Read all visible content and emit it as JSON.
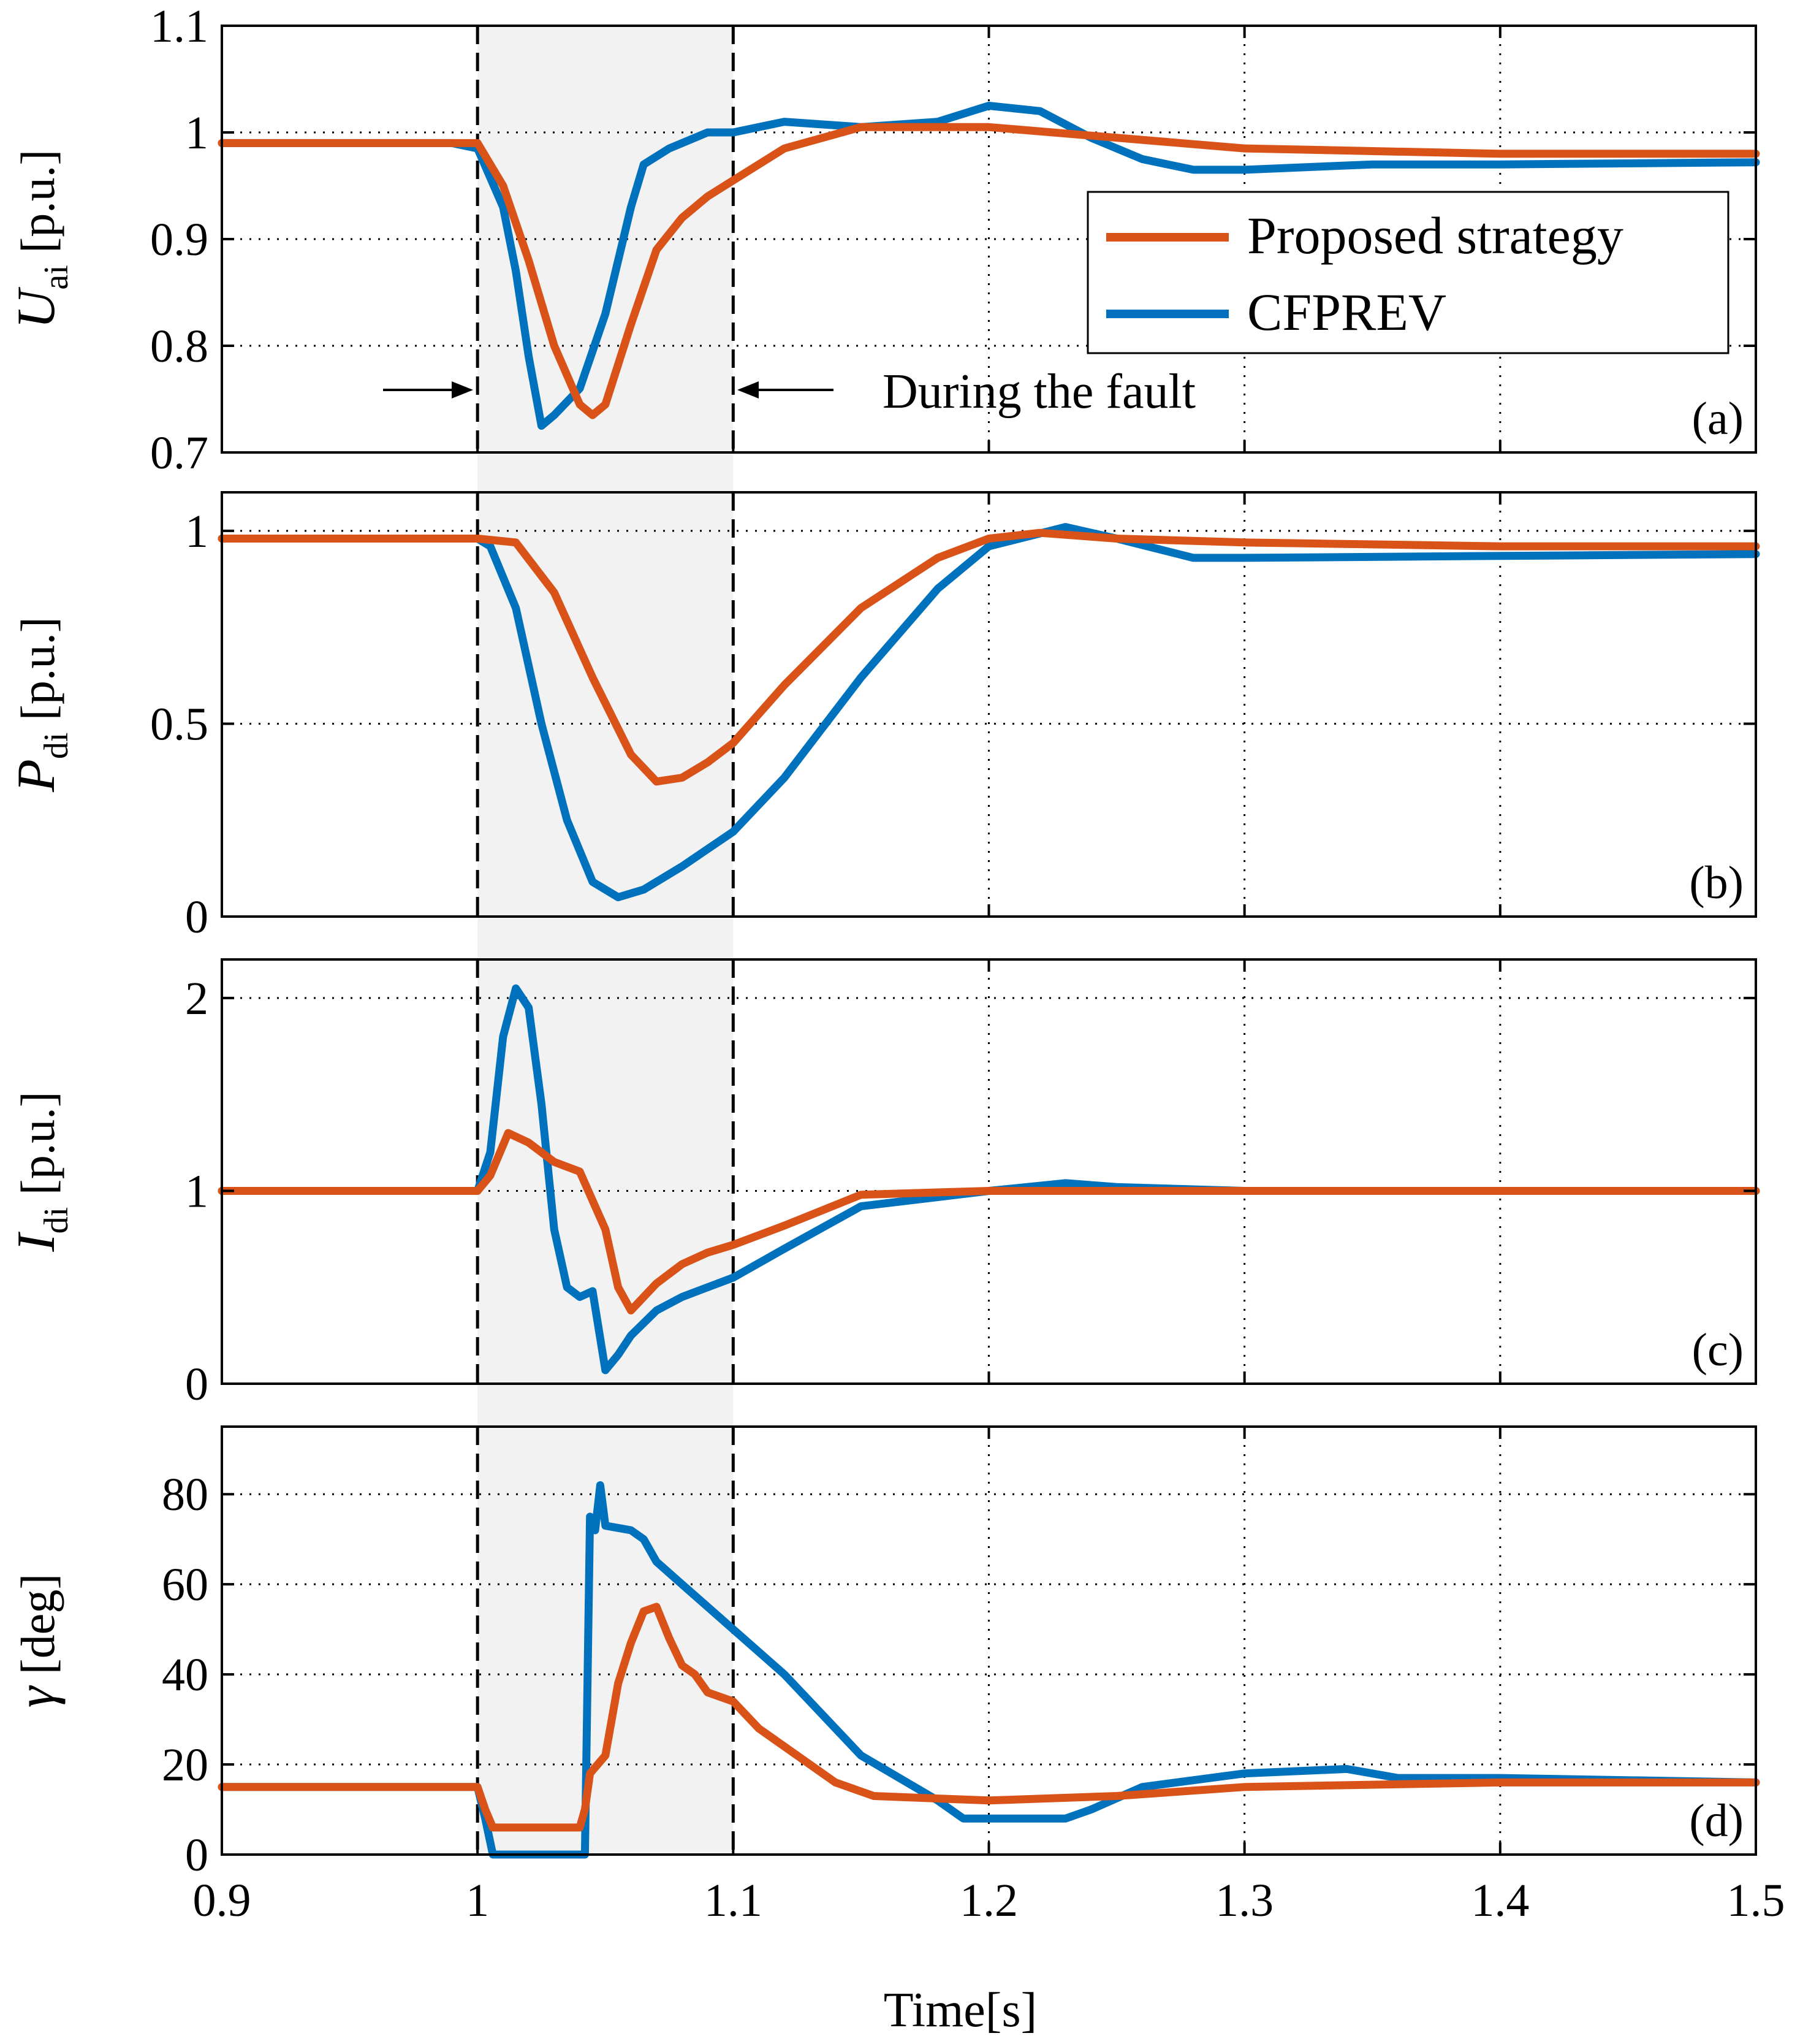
{
  "chart_data": {
    "type": "line",
    "x_axis": {
      "label": "Time[s]",
      "lim": [
        0.9,
        1.5
      ],
      "ticks": [
        0.9,
        1.0,
        1.1,
        1.2,
        1.3,
        1.4,
        1.5
      ],
      "tick_labels": [
        "0.9",
        "1",
        "1.1",
        "1.2",
        "1.3",
        "1.4",
        "1.5"
      ]
    },
    "fault": {
      "start": 1.0,
      "end": 1.1,
      "annotation": "During the fault",
      "shade_color": "#f2f2f2"
    },
    "legend": {
      "placement": "top-right of panel (a)",
      "entries": [
        "Proposed strategy",
        "CFPREV"
      ]
    },
    "series_colors": {
      "proposed": "#d95319",
      "cfprev": "#0072bd"
    },
    "panels": [
      {
        "id": "a",
        "tag": "(a)",
        "ylabel": {
          "symbol": "U",
          "sub": "ai",
          "unit": "[p.u.]"
        },
        "ylim": [
          0.7,
          1.1
        ],
        "yticks": [
          0.7,
          0.8,
          0.9,
          1.0,
          1.1
        ],
        "ytick_labels": [
          "0.7",
          "0.8",
          "0.9",
          "1",
          "1.1"
        ],
        "series": [
          {
            "name": "Proposed strategy",
            "x": [
              0.9,
              0.99,
              1.0,
              1.01,
              1.02,
              1.03,
              1.04,
              1.045,
              1.05,
              1.06,
              1.07,
              1.08,
              1.09,
              1.1,
              1.12,
              1.15,
              1.2,
              1.25,
              1.3,
              1.4,
              1.5
            ],
            "y": [
              0.99,
              0.99,
              0.99,
              0.95,
              0.88,
              0.8,
              0.745,
              0.735,
              0.745,
              0.82,
              0.89,
              0.92,
              0.94,
              0.955,
              0.985,
              1.005,
              1.005,
              0.995,
              0.985,
              0.98,
              0.98
            ]
          },
          {
            "name": "CFPREV",
            "x": [
              0.9,
              0.99,
              1.0,
              1.01,
              1.015,
              1.02,
              1.025,
              1.03,
              1.04,
              1.05,
              1.06,
              1.065,
              1.075,
              1.09,
              1.1,
              1.12,
              1.15,
              1.18,
              1.2,
              1.22,
              1.24,
              1.26,
              1.28,
              1.3,
              1.35,
              1.4,
              1.5
            ],
            "y": [
              0.99,
              0.99,
              0.985,
              0.93,
              0.87,
              0.79,
              0.725,
              0.735,
              0.76,
              0.83,
              0.93,
              0.97,
              0.985,
              1.0,
              1.0,
              1.01,
              1.005,
              1.01,
              1.025,
              1.02,
              0.995,
              0.975,
              0.965,
              0.965,
              0.97,
              0.97,
              0.972
            ]
          }
        ]
      },
      {
        "id": "b",
        "tag": "(b)",
        "ylabel": {
          "symbol": "P",
          "sub": "di",
          "unit": "[p.u.]"
        },
        "ylim": [
          0,
          1.1
        ],
        "yticks": [
          0,
          0.5,
          1.0
        ],
        "ytick_labels": [
          "0",
          "0.5",
          "1"
        ],
        "series": [
          {
            "name": "Proposed strategy",
            "x": [
              0.9,
              1.0,
              1.015,
              1.03,
              1.045,
              1.06,
              1.07,
              1.08,
              1.09,
              1.1,
              1.12,
              1.15,
              1.18,
              1.2,
              1.22,
              1.25,
              1.3,
              1.4,
              1.5
            ],
            "y": [
              0.98,
              0.98,
              0.97,
              0.84,
              0.62,
              0.42,
              0.35,
              0.36,
              0.4,
              0.45,
              0.6,
              0.8,
              0.93,
              0.98,
              0.995,
              0.98,
              0.97,
              0.96,
              0.96
            ]
          },
          {
            "name": "CFPREV",
            "x": [
              0.9,
              1.0,
              1.005,
              1.015,
              1.025,
              1.035,
              1.045,
              1.055,
              1.065,
              1.08,
              1.1,
              1.12,
              1.15,
              1.18,
              1.2,
              1.23,
              1.25,
              1.28,
              1.3,
              1.4,
              1.5
            ],
            "y": [
              0.98,
              0.98,
              0.96,
              0.8,
              0.5,
              0.25,
              0.09,
              0.05,
              0.07,
              0.13,
              0.22,
              0.36,
              0.62,
              0.85,
              0.96,
              1.01,
              0.98,
              0.93,
              0.93,
              0.935,
              0.94
            ]
          }
        ]
      },
      {
        "id": "c",
        "tag": "(c)",
        "ylabel": {
          "symbol": "I",
          "sub": "di",
          "unit": "[p.u.]"
        },
        "ylim": [
          0,
          2.2
        ],
        "yticks": [
          0,
          1.0,
          2.0
        ],
        "ytick_labels": [
          "0",
          "1",
          "2"
        ],
        "series": [
          {
            "name": "Proposed strategy",
            "x": [
              0.9,
              1.0,
              1.005,
              1.012,
              1.02,
              1.03,
              1.04,
              1.05,
              1.055,
              1.06,
              1.07,
              1.08,
              1.09,
              1.1,
              1.12,
              1.15,
              1.2,
              1.3,
              1.4,
              1.5
            ],
            "y": [
              1.0,
              1.0,
              1.08,
              1.3,
              1.25,
              1.15,
              1.1,
              0.8,
              0.5,
              0.38,
              0.52,
              0.62,
              0.68,
              0.72,
              0.82,
              0.98,
              1.0,
              1.0,
              1.0,
              1.0
            ]
          },
          {
            "name": "CFPREV",
            "x": [
              0.9,
              1.0,
              1.005,
              1.01,
              1.015,
              1.02,
              1.025,
              1.03,
              1.035,
              1.04,
              1.045,
              1.05,
              1.055,
              1.06,
              1.07,
              1.08,
              1.09,
              1.1,
              1.12,
              1.15,
              1.2,
              1.23,
              1.25,
              1.3,
              1.4,
              1.5
            ],
            "y": [
              1.0,
              1.0,
              1.2,
              1.8,
              2.05,
              1.95,
              1.45,
              0.8,
              0.5,
              0.45,
              0.48,
              0.07,
              0.15,
              0.25,
              0.38,
              0.45,
              0.5,
              0.55,
              0.7,
              0.92,
              1.0,
              1.04,
              1.02,
              1.0,
              1.0,
              1.0
            ]
          }
        ]
      },
      {
        "id": "d",
        "tag": "(d)",
        "ylabel": {
          "symbol": "γ",
          "sub": "",
          "unit": "[deg]"
        },
        "ylim": [
          0,
          95
        ],
        "yticks": [
          0,
          20,
          40,
          60,
          80
        ],
        "ytick_labels": [
          "0",
          "20",
          "40",
          "60",
          "80"
        ],
        "series": [
          {
            "name": "Proposed strategy",
            "x": [
              0.9,
              1.0,
              1.003,
              1.006,
              1.04,
              1.042,
              1.044,
              1.05,
              1.055,
              1.06,
              1.065,
              1.07,
              1.075,
              1.08,
              1.085,
              1.09,
              1.1,
              1.11,
              1.13,
              1.14,
              1.155,
              1.2,
              1.25,
              1.3,
              1.4,
              1.5
            ],
            "y": [
              15,
              15,
              10,
              6,
              6,
              10,
              18,
              22,
              38,
              47,
              54,
              55,
              48,
              42,
              40,
              36,
              34,
              28,
              20,
              16,
              13,
              12,
              13,
              15,
              16,
              16
            ]
          },
          {
            "name": "CFPREV",
            "x": [
              0.9,
              1.0,
              1.003,
              1.006,
              1.042,
              1.044,
              1.046,
              1.048,
              1.05,
              1.06,
              1.065,
              1.07,
              1.08,
              1.09,
              1.1,
              1.12,
              1.15,
              1.18,
              1.19,
              1.23,
              1.24,
              1.26,
              1.3,
              1.34,
              1.36,
              1.4,
              1.5
            ],
            "y": [
              15,
              15,
              8,
              0,
              0,
              75,
              72,
              82,
              73,
              72,
              70,
              65,
              60,
              55,
              50,
              40,
              22,
              12,
              8,
              8,
              10,
              15,
              18,
              19,
              17,
              17,
              16
            ]
          }
        ]
      }
    ]
  }
}
